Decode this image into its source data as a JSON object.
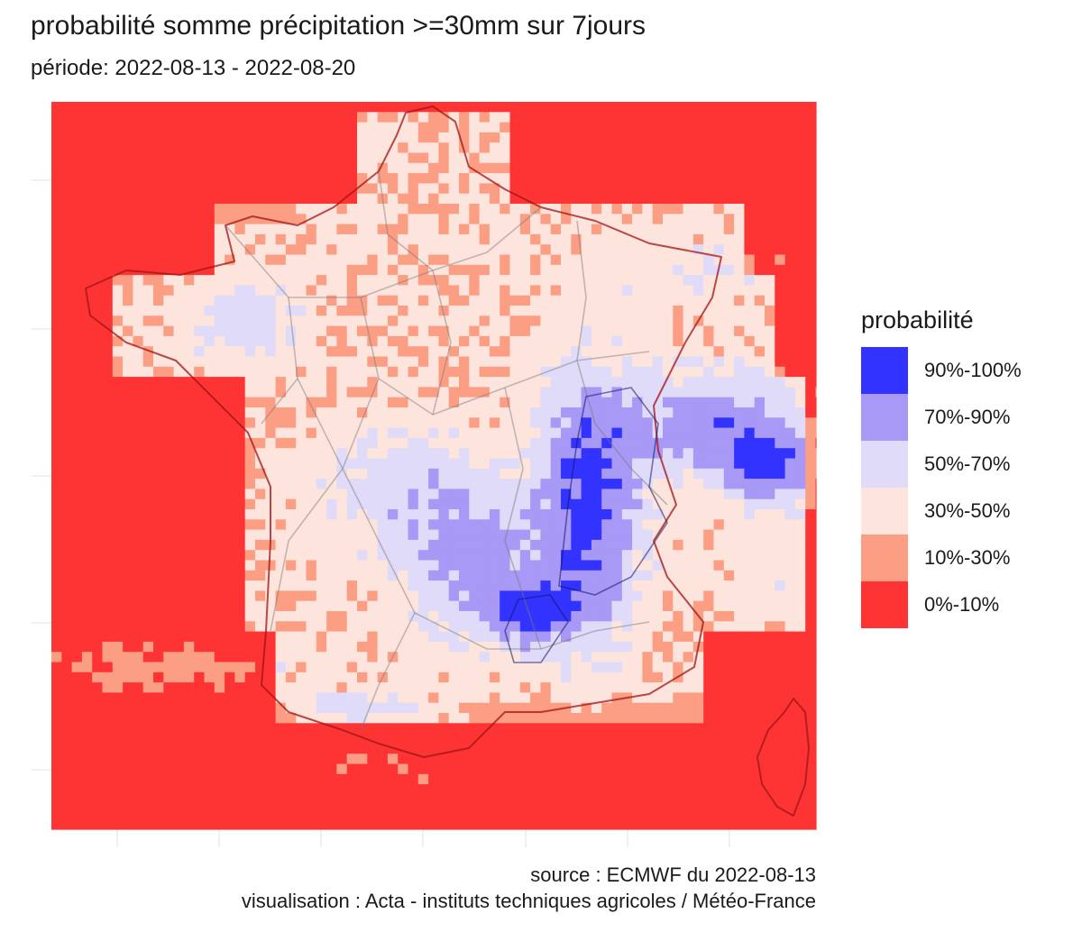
{
  "title": "probabilité somme précipitation >=30mm sur 7jours",
  "subtitle": "période: 2022-08-13 - 2022-08-20",
  "legend": {
    "title": "probabilité",
    "items": [
      {
        "label": "90%-100%",
        "color": "#3333ff"
      },
      {
        "label": "70%-90%",
        "color": "#a799f5"
      },
      {
        "label": "50%-70%",
        "color": "#e0dbf8"
      },
      {
        "label": "30%-50%",
        "color": "#fde4dc"
      },
      {
        "label": "10%-30%",
        "color": "#fc9e84"
      },
      {
        "label": "0%-10%",
        "color": "#fe3434"
      }
    ]
  },
  "caption": {
    "source": "source : ECMWF du 2022-08-13",
    "credit": "visualisation : Acta - instituts techniques agricoles / Météo-France"
  }
}
